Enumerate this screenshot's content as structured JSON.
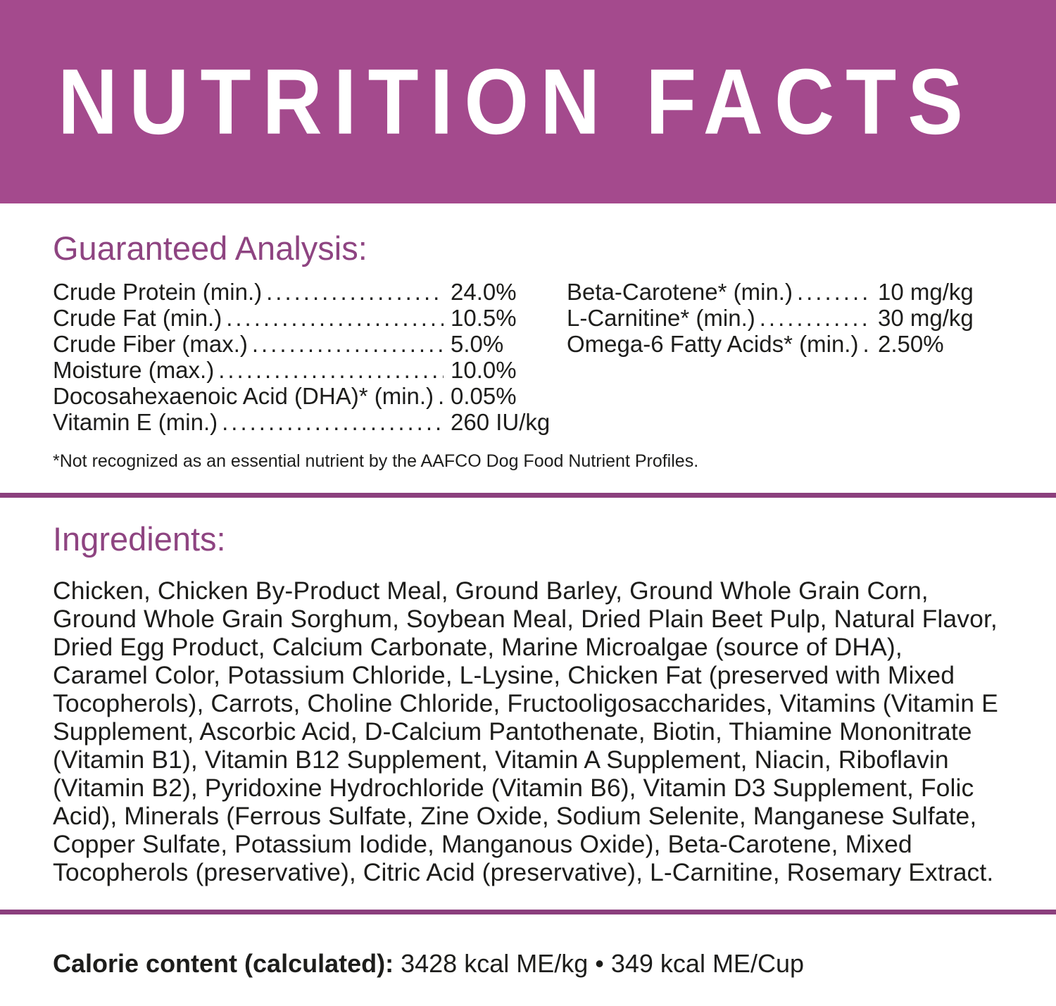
{
  "header": {
    "title": "NUTRITION FACTS",
    "background_color": "#A44A8D",
    "text_color": "#FFFFFF"
  },
  "colors": {
    "accent_purple": "#A44A8D",
    "heading_purple": "#8E4481",
    "divider_purple": "#8B3F7D",
    "body_text": "#1D1D1B"
  },
  "guaranteed_analysis": {
    "heading": "Guaranteed Analysis:",
    "left": [
      {
        "label": "Crude Protein (min.)",
        "value": "24.0%"
      },
      {
        "label": "Crude Fat (min.)",
        "value": "10.5%"
      },
      {
        "label": "Crude Fiber (max.)",
        "value": "5.0%"
      },
      {
        "label": "Moisture (max.)",
        "value": "10.0%"
      },
      {
        "label": "Docosahexaenoic Acid (DHA)* (min.)",
        "value": "0.05%"
      },
      {
        "label": "Vitamin E (min.)",
        "value": "260 IU/kg"
      }
    ],
    "right": [
      {
        "label": "Beta-Carotene* (min.)",
        "value": "10 mg/kg"
      },
      {
        "label": "L-Carnitine* (min.)",
        "value": "30 mg/kg"
      },
      {
        "label": "Omega-6 Fatty Acids* (min.)",
        "value": "2.50%"
      }
    ],
    "footnote": "*Not recognized as an essential nutrient by the AAFCO Dog Food Nutrient Profiles."
  },
  "ingredients": {
    "heading": "Ingredients:",
    "text": "Chicken, Chicken By-Product Meal, Ground Barley, Ground Whole Grain Corn, Ground Whole Grain Sorghum, Soybean Meal, Dried Plain Beet Pulp, Natural Flavor, Dried Egg Product, Calcium Carbonate, Marine Microalgae (source of DHA), Caramel Color, Potassium Chloride, L-Lysine, Chicken Fat (preserved with Mixed Tocopherols), Carrots, Choline Chloride, Fructooligosaccharides, Vitamins (Vitamin E Supplement, Ascorbic Acid, D-Calcium Pantothenate, Biotin, Thiamine Mononitrate (Vitamin B1), Vitamin B12 Supplement, Vitamin A Supplement, Niacin, Riboflavin (Vitamin B2), Pyridoxine Hydrochloride (Vitamin B6), Vitamin D3 Supplement, Folic Acid), Minerals (Ferrous Sulfate, Zine Oxide, Sodium Selenite, Manganese Sulfate, Copper Sulfate, Potassium Iodide, Manganous Oxide), Beta-Carotene, Mixed Tocopherols (preservative), Citric Acid (preservative), L-Carnitine, Rosemary Extract."
  },
  "calories": {
    "label": "Calorie content (calculated):",
    "value": "3428 kcal ME/kg • 349 kcal ME/Cup"
  }
}
